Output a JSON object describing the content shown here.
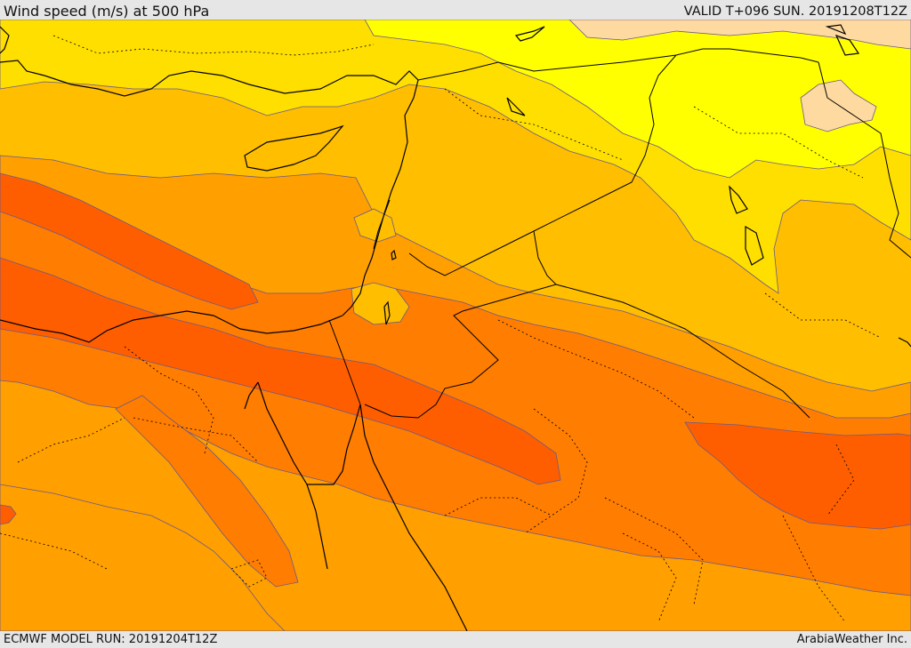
{
  "header": {
    "title": "Wind speed (m/s) at 500 hPa",
    "valid": "VALID T+096 SUN. 20191208T12Z"
  },
  "footer": {
    "model_run": "ECMWF MODEL RUN: 20191204T12Z",
    "credit": "ArabiaWeather Inc."
  },
  "colors": {
    "band_10_15": "#fedaa0",
    "band_15_20": "#ffff00",
    "band_20_25": "#ffdf00",
    "band_25_30": "#ffbe00",
    "band_30_35": "#ff9f00",
    "band_35_40": "#ff7d00",
    "band_40_45": "#ff5e00",
    "contour_line": "#6a5a8a",
    "coastline": "#000000"
  }
}
